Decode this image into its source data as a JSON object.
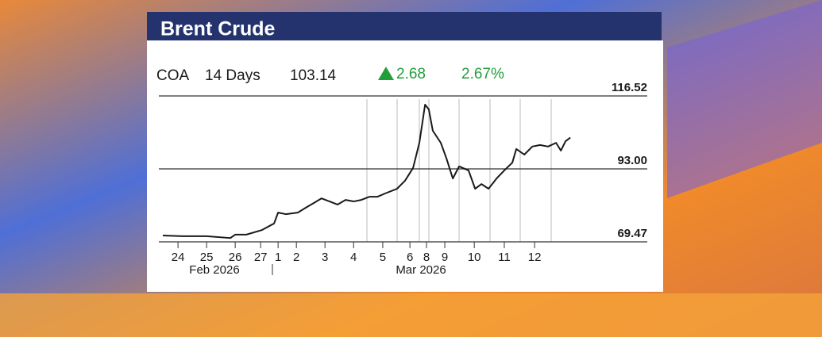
{
  "chart_data": {
    "type": "line",
    "title": "Brent Crude",
    "ticker": "COA",
    "period": "14 Days",
    "last": "103.14",
    "change": "2.68",
    "change_pct": "2.67%",
    "x": [
      0.14,
      0.83,
      1.67,
      2.5,
      2.67,
      3.06,
      3.61,
      4.03,
      4.17,
      4.44,
      4.86,
      5.14,
      5.42,
      5.69,
      5.97,
      6.25,
      6.53,
      6.81,
      7.08,
      7.36,
      7.64,
      7.92,
      8.33,
      8.61,
      8.89,
      9.11,
      9.31,
      9.44,
      9.58,
      9.86,
      10.06,
      10.28,
      10.5,
      10.83,
      11.06,
      11.28,
      11.53,
      11.81,
      12.08,
      12.36,
      12.5,
      12.78,
      13.06,
      13.33,
      13.61,
      13.89,
      14.06,
      14.22,
      14.39
    ],
    "series": [
      {
        "name": "COA",
        "color": "#1a1a1a",
        "values": [
          71.5,
          71.3,
          71.3,
          70.7,
          71.8,
          71.8,
          73.3,
          75.4,
          78.9,
          78.4,
          78.9,
          80.5,
          82.0,
          83.5,
          82.5,
          81.5,
          83.0,
          82.5,
          83.0,
          84.0,
          84.0,
          85.1,
          86.6,
          89.2,
          93.3,
          101.4,
          113.7,
          112.2,
          105.3,
          101.4,
          96.3,
          89.9,
          93.8,
          92.5,
          86.6,
          88.1,
          86.6,
          89.9,
          92.5,
          95.0,
          99.4,
          97.6,
          100.2,
          100.7,
          100.2,
          101.4,
          98.9,
          101.9,
          103.1
        ]
      }
    ],
    "xlim": [
      0,
      17.08
    ],
    "xticks": [
      {
        "value": 0.67,
        "label": "24"
      },
      {
        "value": 1.67,
        "label": "25"
      },
      {
        "value": 2.67,
        "label": "26"
      },
      {
        "value": 3.56,
        "label": "27"
      },
      {
        "value": 4.17,
        "label": "1"
      },
      {
        "value": 4.81,
        "label": "2"
      },
      {
        "value": 5.81,
        "label": "3"
      },
      {
        "value": 6.81,
        "label": "4"
      },
      {
        "value": 7.83,
        "label": "5"
      },
      {
        "value": 8.78,
        "label": "6"
      },
      {
        "value": 9.36,
        "label": "8"
      },
      {
        "value": 10.0,
        "label": "9"
      },
      {
        "value": 11.03,
        "label": "10"
      },
      {
        "value": 12.08,
        "label": "11"
      },
      {
        "value": 13.14,
        "label": "12"
      }
    ],
    "month_labels": [
      "Feb 2026",
      "Mar 2026"
    ],
    "ylim": [
      69.47,
      116.52
    ],
    "yticks": [
      69.47,
      {
        "value": 93,
        "label": "93.00"
      },
      116.52
    ],
    "grid": true
  }
}
